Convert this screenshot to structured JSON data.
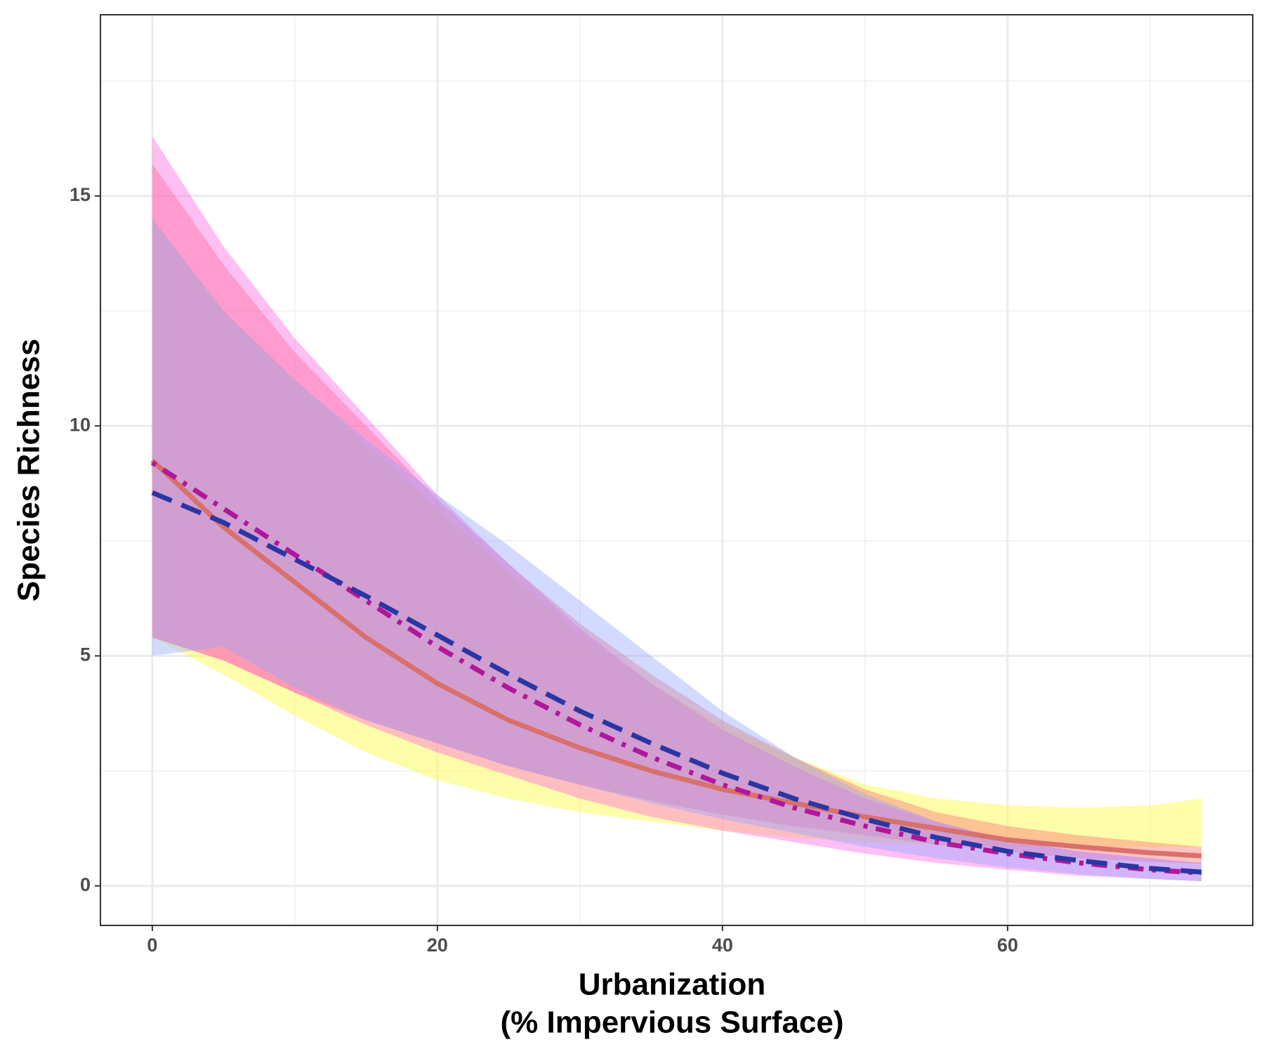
{
  "chart_data": {
    "type": "line",
    "y_label": "Species Richness",
    "x_label": [
      "Urbanization",
      "(% Impervious Surface)"
    ],
    "x": [
      0,
      5,
      10,
      15,
      20,
      25,
      30,
      35,
      40,
      45,
      50,
      55,
      60,
      65,
      70,
      73.6
    ],
    "xlim": [
      -3.64,
      77.2
    ],
    "ylim": [
      -0.86,
      18.94
    ],
    "xticks": [
      0,
      20,
      40,
      60
    ],
    "yticks": [
      0,
      5,
      10,
      15
    ],
    "xminor": [
      10,
      30,
      50,
      70
    ],
    "yminor": [
      2.5,
      7.5,
      12.5,
      17.5
    ],
    "grid": true,
    "bands": [
      {
        "color": "#fbfb55",
        "lower": [
          5.4,
          4.6,
          3.7,
          2.9,
          2.3,
          1.9,
          1.6,
          1.4,
          1.2,
          1.05,
          0.95,
          0.9,
          0.85,
          0.85,
          0.85,
          0.85
        ],
        "upper": [
          14.5,
          12.5,
          11,
          9.6,
          8.2,
          6.8,
          5.5,
          4.4,
          3.5,
          2.8,
          2.2,
          1.9,
          1.75,
          1.7,
          1.75,
          1.9
        ]
      },
      {
        "color": "#ff7a78",
        "lower": [
          5.4,
          4.9,
          4.2,
          3.6,
          3.1,
          2.6,
          2.2,
          1.85,
          1.55,
          1.3,
          1.1,
          0.9,
          0.75,
          0.6,
          0.52,
          0.48
        ],
        "upper": [
          15.7,
          13.5,
          11.6,
          10,
          8.4,
          7,
          5.7,
          4.6,
          3.6,
          2.8,
          2.1,
          1.6,
          1.3,
          1.1,
          0.95,
          0.85
        ]
      },
      {
        "color": "#ff5fe0",
        "lower": [
          5.4,
          4.9,
          4.2,
          3.5,
          2.9,
          2.4,
          1.9,
          1.5,
          1.2,
          0.95,
          0.7,
          0.5,
          0.35,
          0.22,
          0.15,
          0.1
        ],
        "upper": [
          16.3,
          13.9,
          11.9,
          10.2,
          8.5,
          7,
          5.6,
          4.4,
          3.4,
          2.6,
          1.9,
          1.4,
          1,
          0.75,
          0.6,
          0.5
        ]
      },
      {
        "color": "#8fa6ff",
        "lower": [
          5,
          5.2,
          4.3,
          3.6,
          3.1,
          2.6,
          2.2,
          1.8,
          1.45,
          1.15,
          0.85,
          0.6,
          0.4,
          0.25,
          0.15,
          0.1
        ],
        "upper": [
          14.5,
          12.5,
          11,
          9.7,
          8.5,
          7.4,
          6.2,
          5,
          3.8,
          2.8,
          2,
          1.4,
          1,
          0.75,
          0.6,
          0.5
        ]
      }
    ],
    "series": [
      {
        "color": "#d9706c",
        "line_style": "solid",
        "values": [
          9.25,
          7.8,
          6.6,
          5.4,
          4.4,
          3.6,
          3,
          2.5,
          2.1,
          1.8,
          1.5,
          1.25,
          1,
          0.85,
          0.72,
          0.65
        ]
      },
      {
        "color": "#b0179a",
        "line_style": "dotdash",
        "values": [
          9.2,
          8.2,
          7.2,
          6.2,
          5.2,
          4.3,
          3.5,
          2.8,
          2.2,
          1.7,
          1.3,
          0.95,
          0.7,
          0.5,
          0.35,
          0.28
        ]
      },
      {
        "color": "#2b36a3",
        "line_style": "dashed",
        "values": [
          8.55,
          7.9,
          7.1,
          6.3,
          5.45,
          4.6,
          3.8,
          3.1,
          2.45,
          1.9,
          1.45,
          1.05,
          0.75,
          0.55,
          0.38,
          0.3
        ]
      }
    ]
  }
}
